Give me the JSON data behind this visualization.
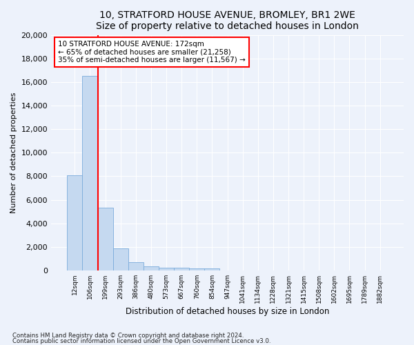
{
  "title1": "10, STRATFORD HOUSE AVENUE, BROMLEY, BR1 2WE",
  "title2": "Size of property relative to detached houses in London",
  "xlabel": "Distribution of detached houses by size in London",
  "ylabel": "Number of detached properties",
  "bar_color": "#c5d9f0",
  "bar_edge_color": "#7aabdb",
  "annotation_text": "10 STRATFORD HOUSE AVENUE: 172sqm\n← 65% of detached houses are smaller (21,258)\n35% of semi-detached houses are larger (11,567) →",
  "footer1": "Contains HM Land Registry data © Crown copyright and database right 2024.",
  "footer2": "Contains public sector information licensed under the Open Government Licence v3.0.",
  "bg_color": "#edf2fb",
  "plot_bg_color": "#edf2fb",
  "grid_color": "#ffffff",
  "categories": [
    "12sqm",
    "106sqm",
    "199sqm",
    "293sqm",
    "386sqm",
    "480sqm",
    "573sqm",
    "667sqm",
    "760sqm",
    "854sqm",
    "947sqm",
    "1041sqm",
    "1134sqm",
    "1228sqm",
    "1321sqm",
    "1415sqm",
    "1508sqm",
    "1602sqm",
    "1695sqm",
    "1789sqm",
    "1882sqm"
  ],
  "values": [
    8100,
    16500,
    5300,
    1850,
    700,
    350,
    260,
    210,
    180,
    200,
    0,
    0,
    0,
    0,
    0,
    0,
    0,
    0,
    0,
    0,
    0
  ],
  "ylim": [
    0,
    20000
  ],
  "yticks": [
    0,
    2000,
    4000,
    6000,
    8000,
    10000,
    12000,
    14000,
    16000,
    18000,
    20000
  ],
  "property_line_x": 1.5
}
